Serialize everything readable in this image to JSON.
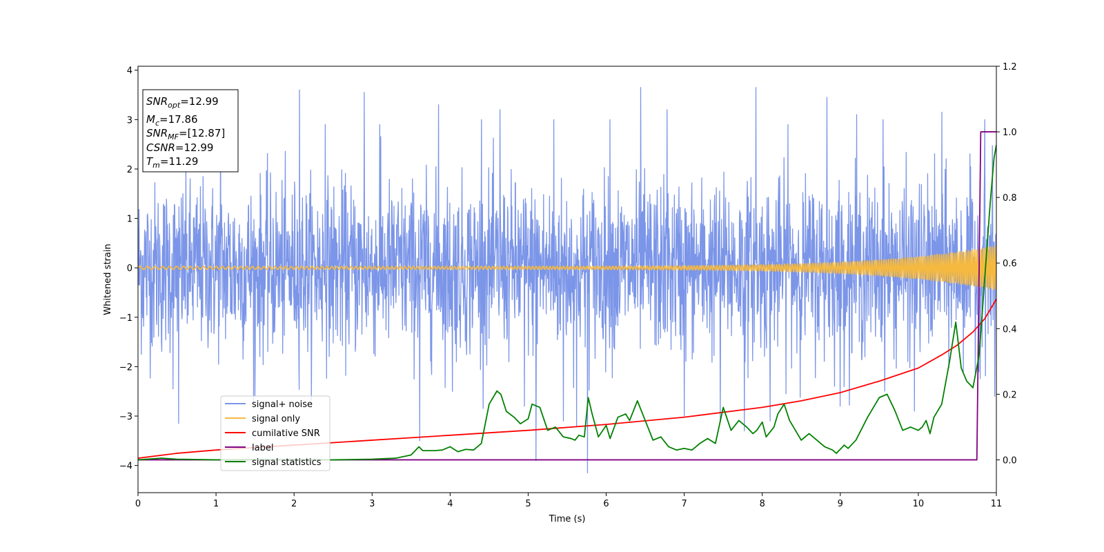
{
  "chart_data": {
    "type": "line",
    "xlabel": "Time (s)",
    "ylabel": "Whitened strain",
    "xlim": [
      0,
      11
    ],
    "ylim": [
      -4.55,
      4.08
    ],
    "y2lim": [
      -0.1,
      1.2
    ],
    "xticks": [
      0,
      1,
      2,
      3,
      4,
      5,
      6,
      7,
      8,
      9,
      10,
      11
    ],
    "yticks": [
      -4,
      -3,
      -2,
      -1,
      0,
      1,
      2,
      3,
      4
    ],
    "xtick_labels": [
      "0",
      "1",
      "2",
      "3",
      "4",
      "5",
      "6",
      "7",
      "8",
      "9",
      "10",
      "11"
    ],
    "ytick_labels": [
      "−4",
      "−3",
      "−2",
      "−1",
      "0",
      "1",
      "2",
      "3",
      "4"
    ],
    "y2ticks": [
      0.0,
      0.2,
      0.4,
      0.6,
      0.8,
      1.0,
      1.2
    ],
    "y2tick_labels": [
      "0.0",
      "0.2",
      "0.4",
      "0.6",
      "0.8",
      "1.0",
      "1.2"
    ],
    "grid": false,
    "legend_position": "lower-left",
    "annotation": {
      "lines": [
        {
          "id": "snr_opt",
          "label": "SNR",
          "sub": "opt",
          "value": "=12.99"
        },
        {
          "id": "mc",
          "label": "M",
          "sub": "c",
          "value": "=17.86"
        },
        {
          "id": "snr_mf",
          "label": "SNR",
          "sub": "MF",
          "value": "=[12.87]"
        },
        {
          "id": "csnr",
          "label": "CSNR",
          "sub": "",
          "value": "=12.99"
        },
        {
          "id": "tm",
          "label": "T",
          "sub": "m",
          "value": "=11.29"
        }
      ]
    },
    "series": [
      {
        "name": "signal+ noise",
        "axis": "left",
        "color": "#7b95e8",
        "kind": "noise",
        "std": 0.85,
        "spikes": [
          [
            0.3,
            -1.5
          ],
          [
            0.45,
            -2.45
          ],
          [
            0.52,
            -3.15
          ],
          [
            1.06,
            3.2
          ],
          [
            1.5,
            -2.6
          ],
          [
            2.07,
            3.6
          ],
          [
            2.4,
            2.9
          ],
          [
            2.9,
            3.55
          ],
          [
            3.1,
            2.9
          ],
          [
            3.61,
            -3.5
          ],
          [
            3.85,
            3.3
          ],
          [
            4.03,
            -2.5
          ],
          [
            4.4,
            3.0
          ],
          [
            4.64,
            3.2
          ],
          [
            4.95,
            -2.8
          ],
          [
            5.1,
            -3.9
          ],
          [
            5.33,
            3.0
          ],
          [
            5.45,
            -3.1
          ],
          [
            5.62,
            -3.2
          ],
          [
            5.76,
            -4.15
          ],
          [
            6.05,
            3.0
          ],
          [
            6.44,
            3.65
          ],
          [
            6.78,
            3.2
          ],
          [
            7.0,
            -3.0
          ],
          [
            7.46,
            -3.1
          ],
          [
            7.77,
            -3.3
          ],
          [
            7.92,
            3.65
          ],
          [
            8.1,
            -3.1
          ],
          [
            8.33,
            2.9
          ],
          [
            8.83,
            3.45
          ],
          [
            9.0,
            -2.8
          ],
          [
            9.21,
            3.1
          ],
          [
            9.55,
            3.0
          ],
          [
            9.95,
            -2.9
          ],
          [
            10.3,
            3.15
          ],
          [
            10.85,
            3.0
          ],
          [
            10.98,
            -2.6
          ]
        ]
      },
      {
        "name": "signal only",
        "axis": "left",
        "color": "#f5b940",
        "kind": "chirp",
        "amplitude_start": 0.03,
        "amplitude_end": 0.45
      },
      {
        "name": "cumilative SNR",
        "axis": "right",
        "color": "#ff0000",
        "points": [
          [
            0.0,
            0.005
          ],
          [
            0.5,
            0.02
          ],
          [
            1.0,
            0.03
          ],
          [
            2.0,
            0.045
          ],
          [
            3.0,
            0.06
          ],
          [
            4.0,
            0.075
          ],
          [
            5.0,
            0.09
          ],
          [
            6.0,
            0.108
          ],
          [
            7.0,
            0.13
          ],
          [
            8.0,
            0.16
          ],
          [
            8.5,
            0.18
          ],
          [
            9.0,
            0.205
          ],
          [
            9.5,
            0.24
          ],
          [
            10.0,
            0.28
          ],
          [
            10.3,
            0.32
          ],
          [
            10.5,
            0.35
          ],
          [
            10.7,
            0.39
          ],
          [
            10.85,
            0.43
          ],
          [
            11.0,
            0.49
          ]
        ]
      },
      {
        "name": "label",
        "axis": "right",
        "color": "#800080",
        "points": [
          [
            0.0,
            0.0
          ],
          [
            10.75,
            0.0
          ],
          [
            10.8,
            1.0
          ],
          [
            11.0,
            1.0
          ]
        ]
      },
      {
        "name": "signal statistics",
        "axis": "right",
        "color": "#008000",
        "points": [
          [
            0.0,
            0.0
          ],
          [
            0.3,
            0.005
          ],
          [
            0.5,
            0.002
          ],
          [
            1.0,
            0.0
          ],
          [
            1.5,
            0.001
          ],
          [
            2.0,
            0.001
          ],
          [
            2.5,
            0.0
          ],
          [
            3.0,
            0.002
          ],
          [
            3.3,
            0.005
          ],
          [
            3.5,
            0.015
          ],
          [
            3.6,
            0.04
          ],
          [
            3.65,
            0.028
          ],
          [
            3.8,
            0.028
          ],
          [
            3.9,
            0.03
          ],
          [
            4.0,
            0.04
          ],
          [
            4.1,
            0.025
          ],
          [
            4.2,
            0.032
          ],
          [
            4.3,
            0.03
          ],
          [
            4.4,
            0.05
          ],
          [
            4.5,
            0.17
          ],
          [
            4.6,
            0.21
          ],
          [
            4.65,
            0.2
          ],
          [
            4.72,
            0.148
          ],
          [
            4.82,
            0.13
          ],
          [
            4.9,
            0.11
          ],
          [
            5.0,
            0.125
          ],
          [
            5.05,
            0.17
          ],
          [
            5.15,
            0.16
          ],
          [
            5.25,
            0.09
          ],
          [
            5.35,
            0.1
          ],
          [
            5.45,
            0.07
          ],
          [
            5.55,
            0.065
          ],
          [
            5.6,
            0.06
          ],
          [
            5.65,
            0.075
          ],
          [
            5.72,
            0.07
          ],
          [
            5.77,
            0.19
          ],
          [
            5.82,
            0.14
          ],
          [
            5.9,
            0.07
          ],
          [
            6.0,
            0.105
          ],
          [
            6.05,
            0.065
          ],
          [
            6.15,
            0.13
          ],
          [
            6.25,
            0.14
          ],
          [
            6.3,
            0.12
          ],
          [
            6.4,
            0.18
          ],
          [
            6.5,
            0.12
          ],
          [
            6.6,
            0.06
          ],
          [
            6.7,
            0.07
          ],
          [
            6.8,
            0.04
          ],
          [
            6.9,
            0.03
          ],
          [
            7.0,
            0.035
          ],
          [
            7.1,
            0.03
          ],
          [
            7.2,
            0.05
          ],
          [
            7.3,
            0.065
          ],
          [
            7.4,
            0.05
          ],
          [
            7.5,
            0.16
          ],
          [
            7.6,
            0.09
          ],
          [
            7.7,
            0.12
          ],
          [
            7.8,
            0.1
          ],
          [
            7.88,
            0.08
          ],
          [
            7.93,
            0.09
          ],
          [
            8.0,
            0.115
          ],
          [
            8.05,
            0.07
          ],
          [
            8.15,
            0.1
          ],
          [
            8.2,
            0.14
          ],
          [
            8.28,
            0.17
          ],
          [
            8.35,
            0.12
          ],
          [
            8.45,
            0.08
          ],
          [
            8.5,
            0.06
          ],
          [
            8.6,
            0.08
          ],
          [
            8.7,
            0.06
          ],
          [
            8.8,
            0.04
          ],
          [
            8.9,
            0.03
          ],
          [
            8.95,
            0.02
          ],
          [
            9.05,
            0.045
          ],
          [
            9.1,
            0.035
          ],
          [
            9.2,
            0.06
          ],
          [
            9.35,
            0.13
          ],
          [
            9.5,
            0.19
          ],
          [
            9.6,
            0.2
          ],
          [
            9.7,
            0.15
          ],
          [
            9.8,
            0.09
          ],
          [
            9.9,
            0.1
          ],
          [
            10.0,
            0.09
          ],
          [
            10.05,
            0.1
          ],
          [
            10.1,
            0.12
          ],
          [
            10.15,
            0.08
          ],
          [
            10.2,
            0.13
          ],
          [
            10.3,
            0.17
          ],
          [
            10.4,
            0.3
          ],
          [
            10.48,
            0.42
          ],
          [
            10.55,
            0.28
          ],
          [
            10.62,
            0.24
          ],
          [
            10.7,
            0.22
          ],
          [
            10.78,
            0.32
          ],
          [
            10.85,
            0.55
          ],
          [
            10.92,
            0.78
          ],
          [
            10.97,
            0.92
          ],
          [
            11.0,
            0.96
          ]
        ]
      }
    ]
  }
}
